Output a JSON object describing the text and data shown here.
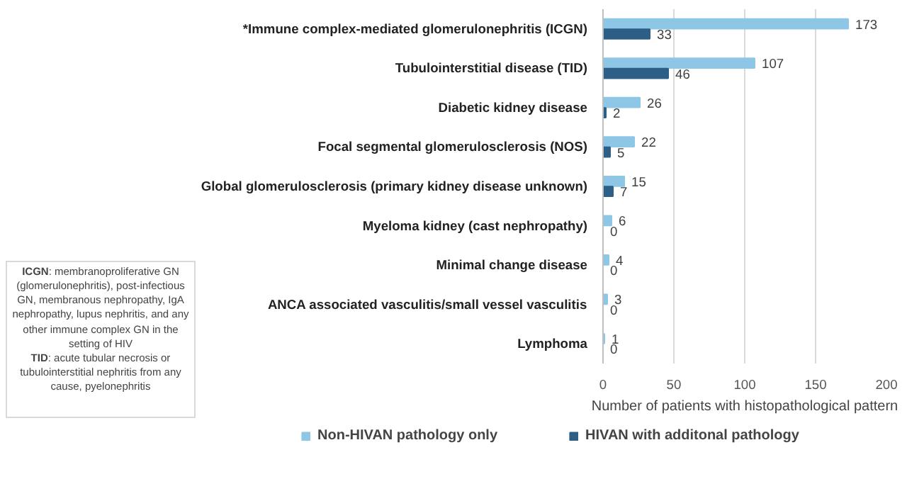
{
  "chart_data": {
    "type": "bar",
    "orientation": "horizontal",
    "categories": [
      "*Immune complex-mediated glomerulonephritis (ICGN)",
      "Tubulointerstitial disease (TID)",
      "Diabetic kidney disease",
      "Focal segmental glomerulosclerosis (NOS)",
      "Global glomerulosclerosis (primary kidney disease unknown)",
      "Myeloma kidney (cast nephropathy)",
      "Minimal change disease",
      "ANCA associated vasculitis/small vessel vasculitis",
      "Lymphoma"
    ],
    "series": [
      {
        "name": "Non-HIVAN pathology only",
        "color": "#8ec6e6",
        "values": [
          173,
          107,
          26,
          22,
          15,
          6,
          4,
          3,
          1
        ]
      },
      {
        "name": "HIVAN with additonal pathology",
        "color": "#2d5f86",
        "values": [
          33,
          46,
          2,
          5,
          7,
          0,
          0,
          0,
          0
        ]
      }
    ],
    "xlabel": "Number of patients with histopathological pattern",
    "xlim": [
      0,
      200
    ],
    "xticks": [
      0,
      50,
      100,
      150,
      200
    ],
    "grid": "x",
    "legend": "bottom",
    "data_labels": true,
    "annotations": [
      "ICGN: membranoproliferative GN (glomerulonephritis), post-infectious GN, membranous nephropathy, IgA nephropathy, lupus nephritis, and any other immune complex GN in the setting of HIV",
      "TID: acute tubular necrosis or tubulointerstitial nephritis from any cause, pyelonephritis"
    ]
  }
}
